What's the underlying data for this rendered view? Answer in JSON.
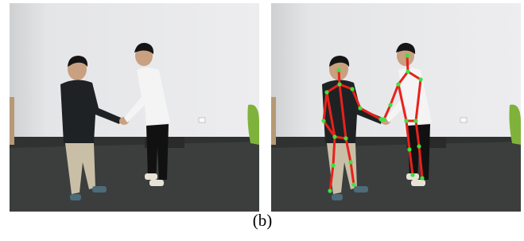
{
  "caption": "(b)"
}
